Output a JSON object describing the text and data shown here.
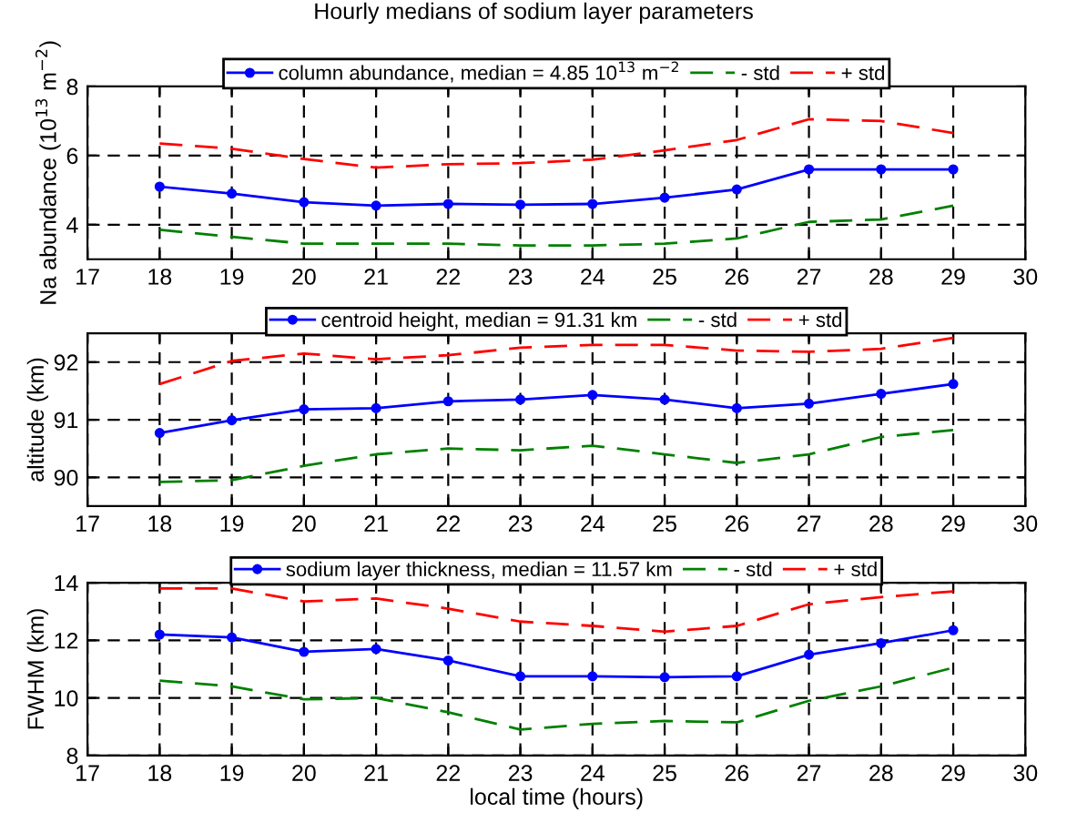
{
  "chart_data": [
    {
      "type": "line",
      "title": "Hourly medians of sodium layer parameters",
      "ylabel": "Na abundance (10$^{13}$ m$^{−2}$)",
      "x": [
        18,
        19,
        20,
        21,
        22,
        23,
        24,
        25,
        26,
        27,
        28,
        29
      ],
      "xlim": [
        17,
        30
      ],
      "xticks": [
        17,
        18,
        19,
        20,
        21,
        22,
        23,
        24,
        25,
        26,
        27,
        28,
        29,
        30
      ],
      "ylim": [
        3,
        8
      ],
      "yticks": [
        4,
        6,
        8
      ],
      "grid": true,
      "legend": "top",
      "series": [
        {
          "name": "column abundance, median = 4.85 10$^{13}$ m$^{−2}$",
          "color": "#0000ff",
          "marker": "circle",
          "line_style": "solid",
          "values": [
            5.1,
            4.9,
            4.65,
            4.55,
            4.6,
            4.58,
            4.6,
            4.78,
            5.02,
            5.6,
            5.6,
            5.6
          ]
        },
        {
          "name": "- std",
          "color": "#008000",
          "line_style": "dashed",
          "values": [
            3.85,
            3.65,
            3.45,
            3.45,
            3.45,
            3.4,
            3.4,
            3.45,
            3.6,
            4.08,
            4.15,
            4.55
          ]
        },
        {
          "name": "+ std",
          "color": "#ff0000",
          "line_style": "dashed",
          "values": [
            6.35,
            6.2,
            5.9,
            5.65,
            5.75,
            5.78,
            5.88,
            6.15,
            6.45,
            7.05,
            7.0,
            6.65
          ]
        }
      ]
    },
    {
      "type": "line",
      "ylabel": "altitude (km)",
      "x": [
        18,
        19,
        20,
        21,
        22,
        23,
        24,
        25,
        26,
        27,
        28,
        29
      ],
      "xlim": [
        17,
        30
      ],
      "xticks": [
        17,
        18,
        19,
        20,
        21,
        22,
        23,
        24,
        25,
        26,
        27,
        28,
        29,
        30
      ],
      "ylim": [
        89.5,
        92.5
      ],
      "yticks": [
        90,
        91,
        92
      ],
      "grid": true,
      "legend": "top",
      "series": [
        {
          "name": "centroid height, median = 91.31 km",
          "color": "#0000ff",
          "marker": "circle",
          "line_style": "solid",
          "values": [
            90.77,
            90.99,
            91.18,
            91.2,
            91.32,
            91.35,
            91.43,
            91.35,
            91.2,
            91.28,
            91.45,
            91.62
          ]
        },
        {
          "name": "- std",
          "color": "#008000",
          "line_style": "dashed",
          "values": [
            89.92,
            89.95,
            90.2,
            90.4,
            90.5,
            90.47,
            90.55,
            90.4,
            90.25,
            90.4,
            90.7,
            90.82
          ]
        },
        {
          "name": "+ std",
          "color": "#ff0000",
          "line_style": "dashed",
          "values": [
            91.62,
            92.02,
            92.15,
            92.05,
            92.12,
            92.25,
            92.3,
            92.3,
            92.2,
            92.18,
            92.23,
            92.42
          ]
        }
      ]
    },
    {
      "type": "line",
      "xlabel": "local time (hours)",
      "ylabel": "FWHM (km)",
      "x": [
        18,
        19,
        20,
        21,
        22,
        23,
        24,
        25,
        26,
        27,
        28,
        29
      ],
      "xlim": [
        17,
        30
      ],
      "xticks": [
        17,
        18,
        19,
        20,
        21,
        22,
        23,
        24,
        25,
        26,
        27,
        28,
        29,
        30
      ],
      "ylim": [
        8,
        14
      ],
      "yticks": [
        8,
        10,
        12,
        14
      ],
      "grid": true,
      "legend": "top",
      "series": [
        {
          "name": "sodium layer thickness, median = 11.57 km",
          "color": "#0000ff",
          "marker": "circle",
          "line_style": "solid",
          "values": [
            12.2,
            12.1,
            11.6,
            11.7,
            11.3,
            10.75,
            10.75,
            10.72,
            10.75,
            11.5,
            11.9,
            12.35
          ]
        },
        {
          "name": "- std",
          "color": "#008000",
          "line_style": "dashed",
          "values": [
            10.6,
            10.4,
            9.95,
            10.0,
            9.5,
            8.9,
            9.1,
            9.2,
            9.15,
            9.9,
            10.4,
            11.05
          ]
        },
        {
          "name": "+ std",
          "color": "#ff0000",
          "line_style": "dashed",
          "values": [
            13.8,
            13.8,
            13.35,
            13.45,
            13.1,
            12.65,
            12.5,
            12.3,
            12.5,
            13.25,
            13.5,
            13.7
          ]
        }
      ]
    }
  ]
}
